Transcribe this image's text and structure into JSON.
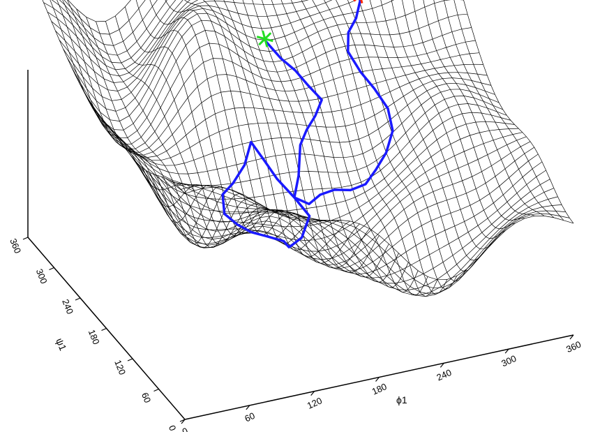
{
  "chart_data": {
    "type": "surface",
    "title": "",
    "x_axis": {
      "label": "ϕ1",
      "range": [
        0,
        360
      ],
      "ticks": [
        "0",
        "60",
        "120",
        "180",
        "240",
        "300",
        "360"
      ]
    },
    "y_axis": {
      "label": "ψ1",
      "range": [
        0,
        360
      ],
      "ticks": [
        "0",
        "60",
        "120",
        "180",
        "240",
        "300",
        "360"
      ]
    },
    "z_axis": {
      "label": "",
      "ticks": []
    },
    "mesh_color": "#000000",
    "path": {
      "color": "#1a1aff",
      "points": [
        [
          180,
          260
        ],
        [
          188,
          245
        ],
        [
          196,
          232
        ],
        [
          202,
          218
        ],
        [
          210,
          206
        ],
        [
          200,
          196
        ],
        [
          188,
          186
        ],
        [
          178,
          176
        ],
        [
          170,
          160
        ],
        [
          162,
          150
        ],
        [
          172,
          140
        ],
        [
          160,
          128
        ],
        [
          148,
          120
        ],
        [
          140,
          108
        ],
        [
          132,
          100
        ],
        [
          122,
          110
        ],
        [
          110,
          120
        ],
        [
          102,
          132
        ],
        [
          94,
          142
        ],
        [
          98,
          156
        ],
        [
          110,
          162
        ],
        [
          124,
          170
        ],
        [
          134,
          180
        ],
        [
          142,
          170
        ],
        [
          150,
          160
        ],
        [
          162,
          150
        ],
        [
          174,
          146
        ],
        [
          186,
          150
        ],
        [
          200,
          152
        ],
        [
          214,
          150
        ],
        [
          228,
          150
        ],
        [
          240,
          156
        ],
        [
          252,
          162
        ],
        [
          262,
          172
        ],
        [
          264,
          188
        ],
        [
          258,
          204
        ],
        [
          250,
          216
        ],
        [
          244,
          230
        ],
        [
          250,
          244
        ],
        [
          262,
          256
        ],
        [
          272,
          270
        ]
      ]
    },
    "start_marker": {
      "color": "#22dd22",
      "phi1": 180,
      "psi1": 262
    },
    "end_marker": {
      "color": "#ff2a00",
      "phi1": 272,
      "psi1": 272
    }
  }
}
